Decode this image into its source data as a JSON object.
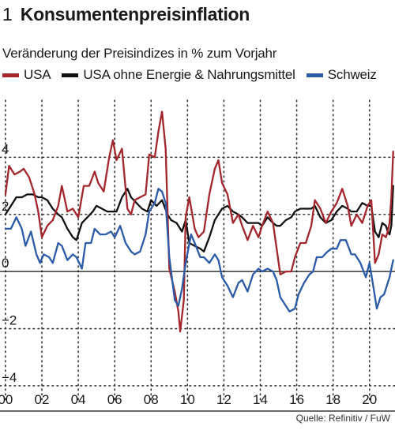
{
  "header": {
    "number": "1",
    "title": "Konsumentenpreisinflation",
    "subtitle": "Veränderung der Preisindizes in % zum Vorjahr"
  },
  "source": "Quelle: Refinitiv / FuW",
  "colors": {
    "usa": "#a3262d",
    "core": "#111111",
    "schweiz": "#2a5aa8",
    "grid": "#333333"
  },
  "chart_data": {
    "type": "line",
    "title": "Konsumentenpreisinflation",
    "ylabel": "",
    "xlabel": "",
    "ylim": [
      -4.5,
      6
    ],
    "xlim": [
      1999.7,
      2021.4
    ],
    "grid": true,
    "legend_position": "top",
    "yticks": [
      4,
      2,
      0,
      -2,
      -4
    ],
    "ytick_labels": [
      "4",
      "2",
      "0",
      "−2",
      "−4"
    ],
    "xticks": [
      2000,
      2002,
      2004,
      2006,
      2008,
      2010,
      2012,
      2014,
      2016,
      2018,
      2020
    ],
    "xtick_labels": [
      "00",
      "02",
      "04",
      "06",
      "08",
      "10",
      "12",
      "14",
      "16",
      "18",
      "20"
    ],
    "series": [
      {
        "name": "USA",
        "key": "usa",
        "points": [
          [
            2000.0,
            2.7
          ],
          [
            2000.2,
            3.7
          ],
          [
            2000.5,
            3.4
          ],
          [
            2000.8,
            3.5
          ],
          [
            2001.0,
            3.6
          ],
          [
            2001.3,
            3.3
          ],
          [
            2001.6,
            2.7
          ],
          [
            2001.8,
            2.1
          ],
          [
            2002.0,
            1.2
          ],
          [
            2002.3,
            1.6
          ],
          [
            2002.6,
            1.8
          ],
          [
            2002.9,
            2.3
          ],
          [
            2003.1,
            3.0
          ],
          [
            2003.4,
            2.1
          ],
          [
            2003.7,
            2.2
          ],
          [
            2004.0,
            1.9
          ],
          [
            2004.3,
            3.0
          ],
          [
            2004.6,
            3.0
          ],
          [
            2004.9,
            3.5
          ],
          [
            2005.1,
            3.1
          ],
          [
            2005.4,
            2.8
          ],
          [
            2005.7,
            4.0
          ],
          [
            2005.9,
            4.6
          ],
          [
            2006.1,
            3.9
          ],
          [
            2006.4,
            4.3
          ],
          [
            2006.7,
            2.2
          ],
          [
            2006.9,
            2.0
          ],
          [
            2007.1,
            2.5
          ],
          [
            2007.4,
            2.6
          ],
          [
            2007.7,
            2.7
          ],
          [
            2007.9,
            4.1
          ],
          [
            2008.2,
            4.0
          ],
          [
            2008.4,
            4.9
          ],
          [
            2008.6,
            5.6
          ],
          [
            2008.8,
            4.3
          ],
          [
            2009.0,
            0.1
          ],
          [
            2009.3,
            -0.7
          ],
          [
            2009.5,
            -1.4
          ],
          [
            2009.6,
            -2.1
          ],
          [
            2009.8,
            -1.0
          ],
          [
            2009.9,
            1.9
          ],
          [
            2010.1,
            2.6
          ],
          [
            2010.4,
            1.5
          ],
          [
            2010.6,
            1.2
          ],
          [
            2010.9,
            1.4
          ],
          [
            2011.2,
            2.7
          ],
          [
            2011.5,
            3.6
          ],
          [
            2011.7,
            3.9
          ],
          [
            2011.9,
            3.1
          ],
          [
            2012.2,
            2.7
          ],
          [
            2012.5,
            1.7
          ],
          [
            2012.8,
            2.0
          ],
          [
            2013.0,
            1.6
          ],
          [
            2013.3,
            1.1
          ],
          [
            2013.6,
            1.6
          ],
          [
            2013.9,
            1.2
          ],
          [
            2014.1,
            1.6
          ],
          [
            2014.4,
            2.1
          ],
          [
            2014.7,
            1.7
          ],
          [
            2014.9,
            0.8
          ],
          [
            2015.1,
            -0.1
          ],
          [
            2015.4,
            0.0
          ],
          [
            2015.7,
            0.0
          ],
          [
            2015.9,
            0.5
          ],
          [
            2016.2,
            1.0
          ],
          [
            2016.5,
            1.0
          ],
          [
            2016.8,
            1.6
          ],
          [
            2017.0,
            2.5
          ],
          [
            2017.3,
            2.2
          ],
          [
            2017.6,
            1.7
          ],
          [
            2017.9,
            2.1
          ],
          [
            2018.2,
            2.4
          ],
          [
            2018.5,
            2.9
          ],
          [
            2018.8,
            2.3
          ],
          [
            2019.0,
            1.6
          ],
          [
            2019.3,
            2.0
          ],
          [
            2019.6,
            1.7
          ],
          [
            2019.9,
            2.3
          ],
          [
            2020.1,
            2.5
          ],
          [
            2020.3,
            0.3
          ],
          [
            2020.5,
            0.6
          ],
          [
            2020.7,
            1.3
          ],
          [
            2020.9,
            1.2
          ],
          [
            2021.0,
            1.4
          ],
          [
            2021.1,
            1.7
          ],
          [
            2021.2,
            2.6
          ],
          [
            2021.3,
            4.2
          ]
        ]
      },
      {
        "name": "USA ohne Energie & Nahrungsmittel",
        "key": "core",
        "points": [
          [
            2000.0,
            2.0
          ],
          [
            2000.3,
            2.3
          ],
          [
            2000.6,
            2.6
          ],
          [
            2000.9,
            2.6
          ],
          [
            2001.2,
            2.7
          ],
          [
            2001.5,
            2.7
          ],
          [
            2001.8,
            2.6
          ],
          [
            2002.0,
            2.6
          ],
          [
            2002.3,
            2.5
          ],
          [
            2002.6,
            2.2
          ],
          [
            2002.9,
            2.0
          ],
          [
            2003.1,
            1.9
          ],
          [
            2003.4,
            1.5
          ],
          [
            2003.7,
            1.2
          ],
          [
            2003.9,
            1.1
          ],
          [
            2004.2,
            1.7
          ],
          [
            2004.5,
            1.9
          ],
          [
            2004.8,
            2.1
          ],
          [
            2005.0,
            2.3
          ],
          [
            2005.3,
            2.2
          ],
          [
            2005.6,
            2.1
          ],
          [
            2005.9,
            2.1
          ],
          [
            2006.1,
            2.1
          ],
          [
            2006.4,
            2.6
          ],
          [
            2006.7,
            2.9
          ],
          [
            2006.9,
            2.6
          ],
          [
            2007.2,
            2.4
          ],
          [
            2007.5,
            2.2
          ],
          [
            2007.8,
            2.1
          ],
          [
            2008.0,
            2.5
          ],
          [
            2008.3,
            2.3
          ],
          [
            2008.6,
            2.5
          ],
          [
            2008.9,
            2.0
          ],
          [
            2009.1,
            1.8
          ],
          [
            2009.4,
            1.7
          ],
          [
            2009.7,
            1.4
          ],
          [
            2009.9,
            1.8
          ],
          [
            2010.1,
            1.0
          ],
          [
            2010.4,
            0.9
          ],
          [
            2010.7,
            0.8
          ],
          [
            2010.9,
            0.7
          ],
          [
            2011.2,
            1.2
          ],
          [
            2011.5,
            1.8
          ],
          [
            2011.7,
            2.0
          ],
          [
            2011.9,
            2.2
          ],
          [
            2012.2,
            2.3
          ],
          [
            2012.5,
            2.1
          ],
          [
            2012.8,
            2.0
          ],
          [
            2013.0,
            1.9
          ],
          [
            2013.3,
            1.7
          ],
          [
            2013.6,
            1.7
          ],
          [
            2013.9,
            1.7
          ],
          [
            2014.1,
            1.6
          ],
          [
            2014.4,
            1.9
          ],
          [
            2014.7,
            1.7
          ],
          [
            2014.9,
            1.6
          ],
          [
            2015.1,
            1.6
          ],
          [
            2015.4,
            1.8
          ],
          [
            2015.7,
            1.9
          ],
          [
            2015.9,
            2.1
          ],
          [
            2016.2,
            2.2
          ],
          [
            2016.5,
            2.2
          ],
          [
            2016.8,
            2.2
          ],
          [
            2017.0,
            2.3
          ],
          [
            2017.3,
            1.9
          ],
          [
            2017.6,
            1.7
          ],
          [
            2017.9,
            1.8
          ],
          [
            2018.2,
            2.1
          ],
          [
            2018.5,
            2.3
          ],
          [
            2018.8,
            2.2
          ],
          [
            2019.0,
            2.1
          ],
          [
            2019.3,
            2.1
          ],
          [
            2019.6,
            2.4
          ],
          [
            2019.9,
            2.3
          ],
          [
            2020.1,
            2.3
          ],
          [
            2020.3,
            1.4
          ],
          [
            2020.5,
            1.2
          ],
          [
            2020.7,
            1.7
          ],
          [
            2020.9,
            1.6
          ],
          [
            2021.0,
            1.4
          ],
          [
            2021.1,
            1.3
          ],
          [
            2021.2,
            1.6
          ],
          [
            2021.3,
            3.0
          ]
        ]
      },
      {
        "name": "Schweiz",
        "key": "schweiz",
        "points": [
          [
            2000.0,
            1.5
          ],
          [
            2000.3,
            1.5
          ],
          [
            2000.6,
            1.9
          ],
          [
            2000.9,
            1.5
          ],
          [
            2001.1,
            0.9
          ],
          [
            2001.4,
            1.4
          ],
          [
            2001.7,
            0.6
          ],
          [
            2001.9,
            0.3
          ],
          [
            2002.1,
            0.6
          ],
          [
            2002.4,
            0.5
          ],
          [
            2002.6,
            0.3
          ],
          [
            2002.9,
            1.0
          ],
          [
            2003.1,
            0.9
          ],
          [
            2003.4,
            0.4
          ],
          [
            2003.7,
            0.6
          ],
          [
            2003.9,
            0.5
          ],
          [
            2004.2,
            0.1
          ],
          [
            2004.4,
            1.0
          ],
          [
            2004.7,
            1.0
          ],
          [
            2004.9,
            1.5
          ],
          [
            2005.2,
            1.3
          ],
          [
            2005.5,
            1.3
          ],
          [
            2005.8,
            1.4
          ],
          [
            2006.0,
            1.2
          ],
          [
            2006.3,
            1.6
          ],
          [
            2006.6,
            1.0
          ],
          [
            2006.9,
            0.7
          ],
          [
            2007.1,
            0.6
          ],
          [
            2007.4,
            0.7
          ],
          [
            2007.7,
            1.3
          ],
          [
            2007.9,
            2.1
          ],
          [
            2008.2,
            2.4
          ],
          [
            2008.4,
            2.9
          ],
          [
            2008.6,
            2.8
          ],
          [
            2008.8,
            2.4
          ],
          [
            2009.0,
            0.5
          ],
          [
            2009.3,
            -1.0
          ],
          [
            2009.5,
            -1.2
          ],
          [
            2009.7,
            -0.6
          ],
          [
            2009.9,
            0.3
          ],
          [
            2010.2,
            1.3
          ],
          [
            2010.4,
            1.0
          ],
          [
            2010.7,
            0.5
          ],
          [
            2010.9,
            0.5
          ],
          [
            2011.2,
            0.3
          ],
          [
            2011.5,
            0.6
          ],
          [
            2011.7,
            0.4
          ],
          [
            2011.9,
            -0.2
          ],
          [
            2012.2,
            -0.5
          ],
          [
            2012.5,
            -0.9
          ],
          [
            2012.8,
            -0.4
          ],
          [
            2013.0,
            -0.3
          ],
          [
            2013.3,
            -0.7
          ],
          [
            2013.6,
            -0.1
          ],
          [
            2013.9,
            0.1
          ],
          [
            2014.1,
            0.0
          ],
          [
            2014.4,
            0.1
          ],
          [
            2014.7,
            0.0
          ],
          [
            2014.9,
            -0.3
          ],
          [
            2015.1,
            -0.9
          ],
          [
            2015.4,
            -1.2
          ],
          [
            2015.6,
            -1.4
          ],
          [
            2015.9,
            -1.3
          ],
          [
            2016.1,
            -0.8
          ],
          [
            2016.4,
            -0.4
          ],
          [
            2016.7,
            -0.1
          ],
          [
            2016.9,
            0.0
          ],
          [
            2017.1,
            0.5
          ],
          [
            2017.4,
            0.5
          ],
          [
            2017.7,
            0.7
          ],
          [
            2017.9,
            0.8
          ],
          [
            2018.2,
            0.8
          ],
          [
            2018.4,
            1.1
          ],
          [
            2018.7,
            1.1
          ],
          [
            2019.0,
            0.6
          ],
          [
            2019.2,
            0.6
          ],
          [
            2019.5,
            0.3
          ],
          [
            2019.8,
            -0.2
          ],
          [
            2020.0,
            0.3
          ],
          [
            2020.2,
            -0.5
          ],
          [
            2020.4,
            -1.3
          ],
          [
            2020.6,
            -0.9
          ],
          [
            2020.8,
            -0.8
          ],
          [
            2021.0,
            -0.4
          ],
          [
            2021.1,
            -0.2
          ],
          [
            2021.3,
            0.4
          ]
        ]
      }
    ]
  }
}
